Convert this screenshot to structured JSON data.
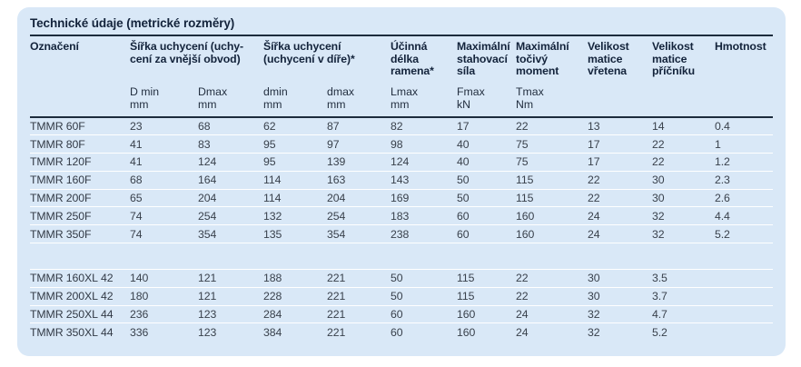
{
  "title": "Technické údaje (metrické rozměry)",
  "colors": {
    "page_bg": "#ffffff",
    "panel_bg": "#d9e8f7",
    "divider_dark": "#1c2b3c",
    "row_divider": "#ffffff",
    "header_text": "#13233b",
    "body_text": "#39414c"
  },
  "table": {
    "designation_header": "Označení",
    "groups": [
      {
        "label": "Šířka uchycení (uchy-\ncení za vnější obvod)"
      },
      {
        "label": "Šířka uchycení\n(uchycení v díře)*"
      },
      {
        "label": "Účinná\ndélka\nramena*"
      },
      {
        "label": "Maximální\nstahovací\nsíla"
      },
      {
        "label": "Maximální\ntočivý\nmoment"
      },
      {
        "label": "Velikost\nmatice\nvřetena"
      },
      {
        "label": "Velikost\nmatice\npříčníku"
      },
      {
        "label": "Hmotnost"
      }
    ],
    "units": [
      {
        "sym": "D min",
        "unit": "mm"
      },
      {
        "sym": "Dmax",
        "unit": "mm"
      },
      {
        "sym": "dmin",
        "unit": "mm"
      },
      {
        "sym": "dmax",
        "unit": "mm"
      },
      {
        "sym": "Lmax",
        "unit": "mm"
      },
      {
        "sym": "Fmax",
        "unit": "kN"
      },
      {
        "sym": "Tmax",
        "unit": "Nm"
      }
    ],
    "rows_f": [
      {
        "name": "TMMR 60F",
        "values": [
          "23",
          "68",
          "62",
          "87",
          "82",
          "17",
          "22",
          "13",
          "14",
          "0.4"
        ]
      },
      {
        "name": "TMMR 80F",
        "values": [
          "41",
          "83",
          "95",
          "97",
          "98",
          "40",
          "75",
          "17",
          "22",
          "1"
        ]
      },
      {
        "name": "TMMR 120F",
        "values": [
          "41",
          "124",
          "95",
          "139",
          "124",
          "40",
          "75",
          "17",
          "22",
          "1.2"
        ]
      },
      {
        "name": "TMMR 160F",
        "values": [
          "68",
          "164",
          "114",
          "163",
          "143",
          "50",
          "115",
          "22",
          "30",
          "2.3"
        ]
      },
      {
        "name": "TMMR 200F",
        "values": [
          "65",
          "204",
          "114",
          "204",
          "169",
          "50",
          "115",
          "22",
          "30",
          "2.6"
        ]
      },
      {
        "name": "TMMR 250F",
        "values": [
          "74",
          "254",
          "132",
          "254",
          "183",
          "60",
          "160",
          "24",
          "32",
          "4.4"
        ]
      },
      {
        "name": "TMMR 350F",
        "values": [
          "74",
          "354",
          "135",
          "354",
          "238",
          "60",
          "160",
          "24",
          "32",
          "5.2"
        ]
      }
    ],
    "rows_xl": [
      {
        "name": "TMMR 160XL",
        "extra": "42",
        "values": [
          "140",
          "121",
          "188",
          "221",
          "50",
          "115",
          "22",
          "30",
          "3.5"
        ]
      },
      {
        "name": "TMMR 200XL",
        "extra": "42",
        "values": [
          "180",
          "121",
          "228",
          "221",
          "50",
          "115",
          "22",
          "30",
          "3.7"
        ]
      },
      {
        "name": "TMMR 250XL",
        "extra": "44",
        "values": [
          "236",
          "123",
          "284",
          "221",
          "60",
          "160",
          "24",
          "32",
          "4.7"
        ]
      },
      {
        "name": "TMMR 350XL",
        "extra": "44",
        "values": [
          "336",
          "123",
          "384",
          "221",
          "60",
          "160",
          "24",
          "32",
          "5.2"
        ]
      }
    ]
  }
}
